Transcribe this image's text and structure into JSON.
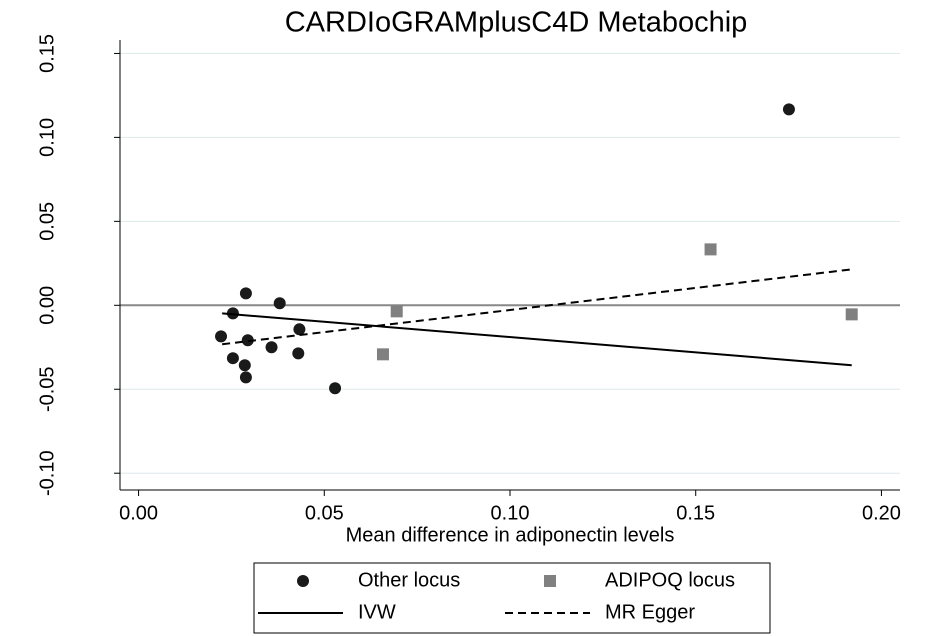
{
  "chart_data": {
    "type": "scatter",
    "title": "CARDIoGRAMplusC4D Metabochip",
    "x_label": "Mean difference in adiponectin levels",
    "xlim": [
      -0.005,
      0.205
    ],
    "ylim": [
      -0.11,
      0.158
    ],
    "xticks": [
      {
        "value": 0,
        "label": "0.00"
      },
      {
        "value": 0.05,
        "label": "0.05"
      },
      {
        "value": 0.1,
        "label": "0.10"
      },
      {
        "value": 0.15,
        "label": "0.15"
      },
      {
        "value": 0.2,
        "label": "0.20"
      }
    ],
    "yticks": [
      {
        "value": -0.1,
        "label": "-0.10"
      },
      {
        "value": -0.05,
        "label": "-0.05"
      },
      {
        "value": 0,
        "label": "0.00"
      },
      {
        "value": 0.05,
        "label": "0.05"
      },
      {
        "value": 0.1,
        "label": "0.10"
      },
      {
        "value": 0.15,
        "label": "0.15"
      }
    ],
    "grid": true,
    "legend": "bottom",
    "series": [
      {
        "name": "Other locus",
        "mode": "circle",
        "color": "#1a1a1a",
        "x": [
          0.0222,
          0.0254,
          0.0289,
          0.0254,
          0.0294,
          0.0286,
          0.0289,
          0.038,
          0.0358,
          0.0433,
          0.043,
          0.0529,
          0.1751
        ],
        "values": [
          -0.0185,
          -0.0048,
          0.0071,
          -0.0315,
          -0.0208,
          -0.0357,
          -0.0429,
          0.0012,
          -0.025,
          -0.0143,
          -0.0286,
          -0.0494,
          0.1167
        ]
      },
      {
        "name": "ADIPOQ locus",
        "mode": "square",
        "color": "#808080",
        "x": [
          0.0658,
          0.0695,
          0.154,
          0.192
        ],
        "values": [
          -0.0292,
          -0.0036,
          0.0333,
          -0.0054
        ]
      },
      {
        "name": "IVW",
        "mode": "solid",
        "color": "#000000",
        "x": [
          0.0225,
          0.192
        ],
        "values": [
          -0.0048,
          -0.0357
        ]
      },
      {
        "name": "MR Egger",
        "mode": "dashed",
        "color": "#000000",
        "x": [
          0.0225,
          0.192
        ],
        "values": [
          -0.0232,
          0.0214
        ]
      }
    ]
  }
}
